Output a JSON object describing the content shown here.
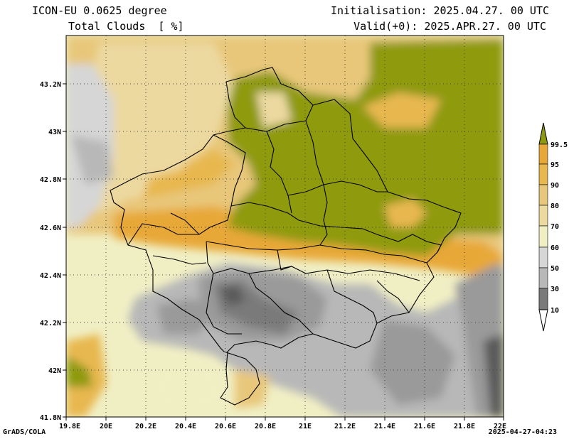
{
  "header": {
    "model": "ICON-EU 0.0625 degree",
    "variable": "Total Clouds  [ %]",
    "init": "Initialisation: 2025.04.27. 00 UTC",
    "valid": "Valid(+0): 2025.APR.27. 00 UTC"
  },
  "footer": {
    "left": "GrADS/COLA",
    "right": "2025-04-27-04:23"
  },
  "axes": {
    "x_labels": [
      "19.8E",
      "20E",
      "20.2E",
      "20.4E",
      "20.6E",
      "20.8E",
      "21E",
      "21.2E",
      "21.4E",
      "21.6E",
      "21.8E",
      "22E"
    ],
    "y_labels": [
      "43.2N",
      "43N",
      "42.8N",
      "42.6N",
      "42.4N",
      "42.2N",
      "42N",
      "41.8N"
    ]
  },
  "colorbar": {
    "levels": [
      "99.5",
      "95",
      "90",
      "80",
      "70",
      "60",
      "50",
      "30",
      "10"
    ],
    "colors": [
      "#5a5a5a",
      "#7a7a7a",
      "#9a9a9a",
      "#b8b8b8",
      "#d6d6d6",
      "#f0efc4",
      "#ecd9a0",
      "#e8c77a",
      "#e8b850",
      "#e8a838",
      "#8f9a10"
    ]
  }
}
